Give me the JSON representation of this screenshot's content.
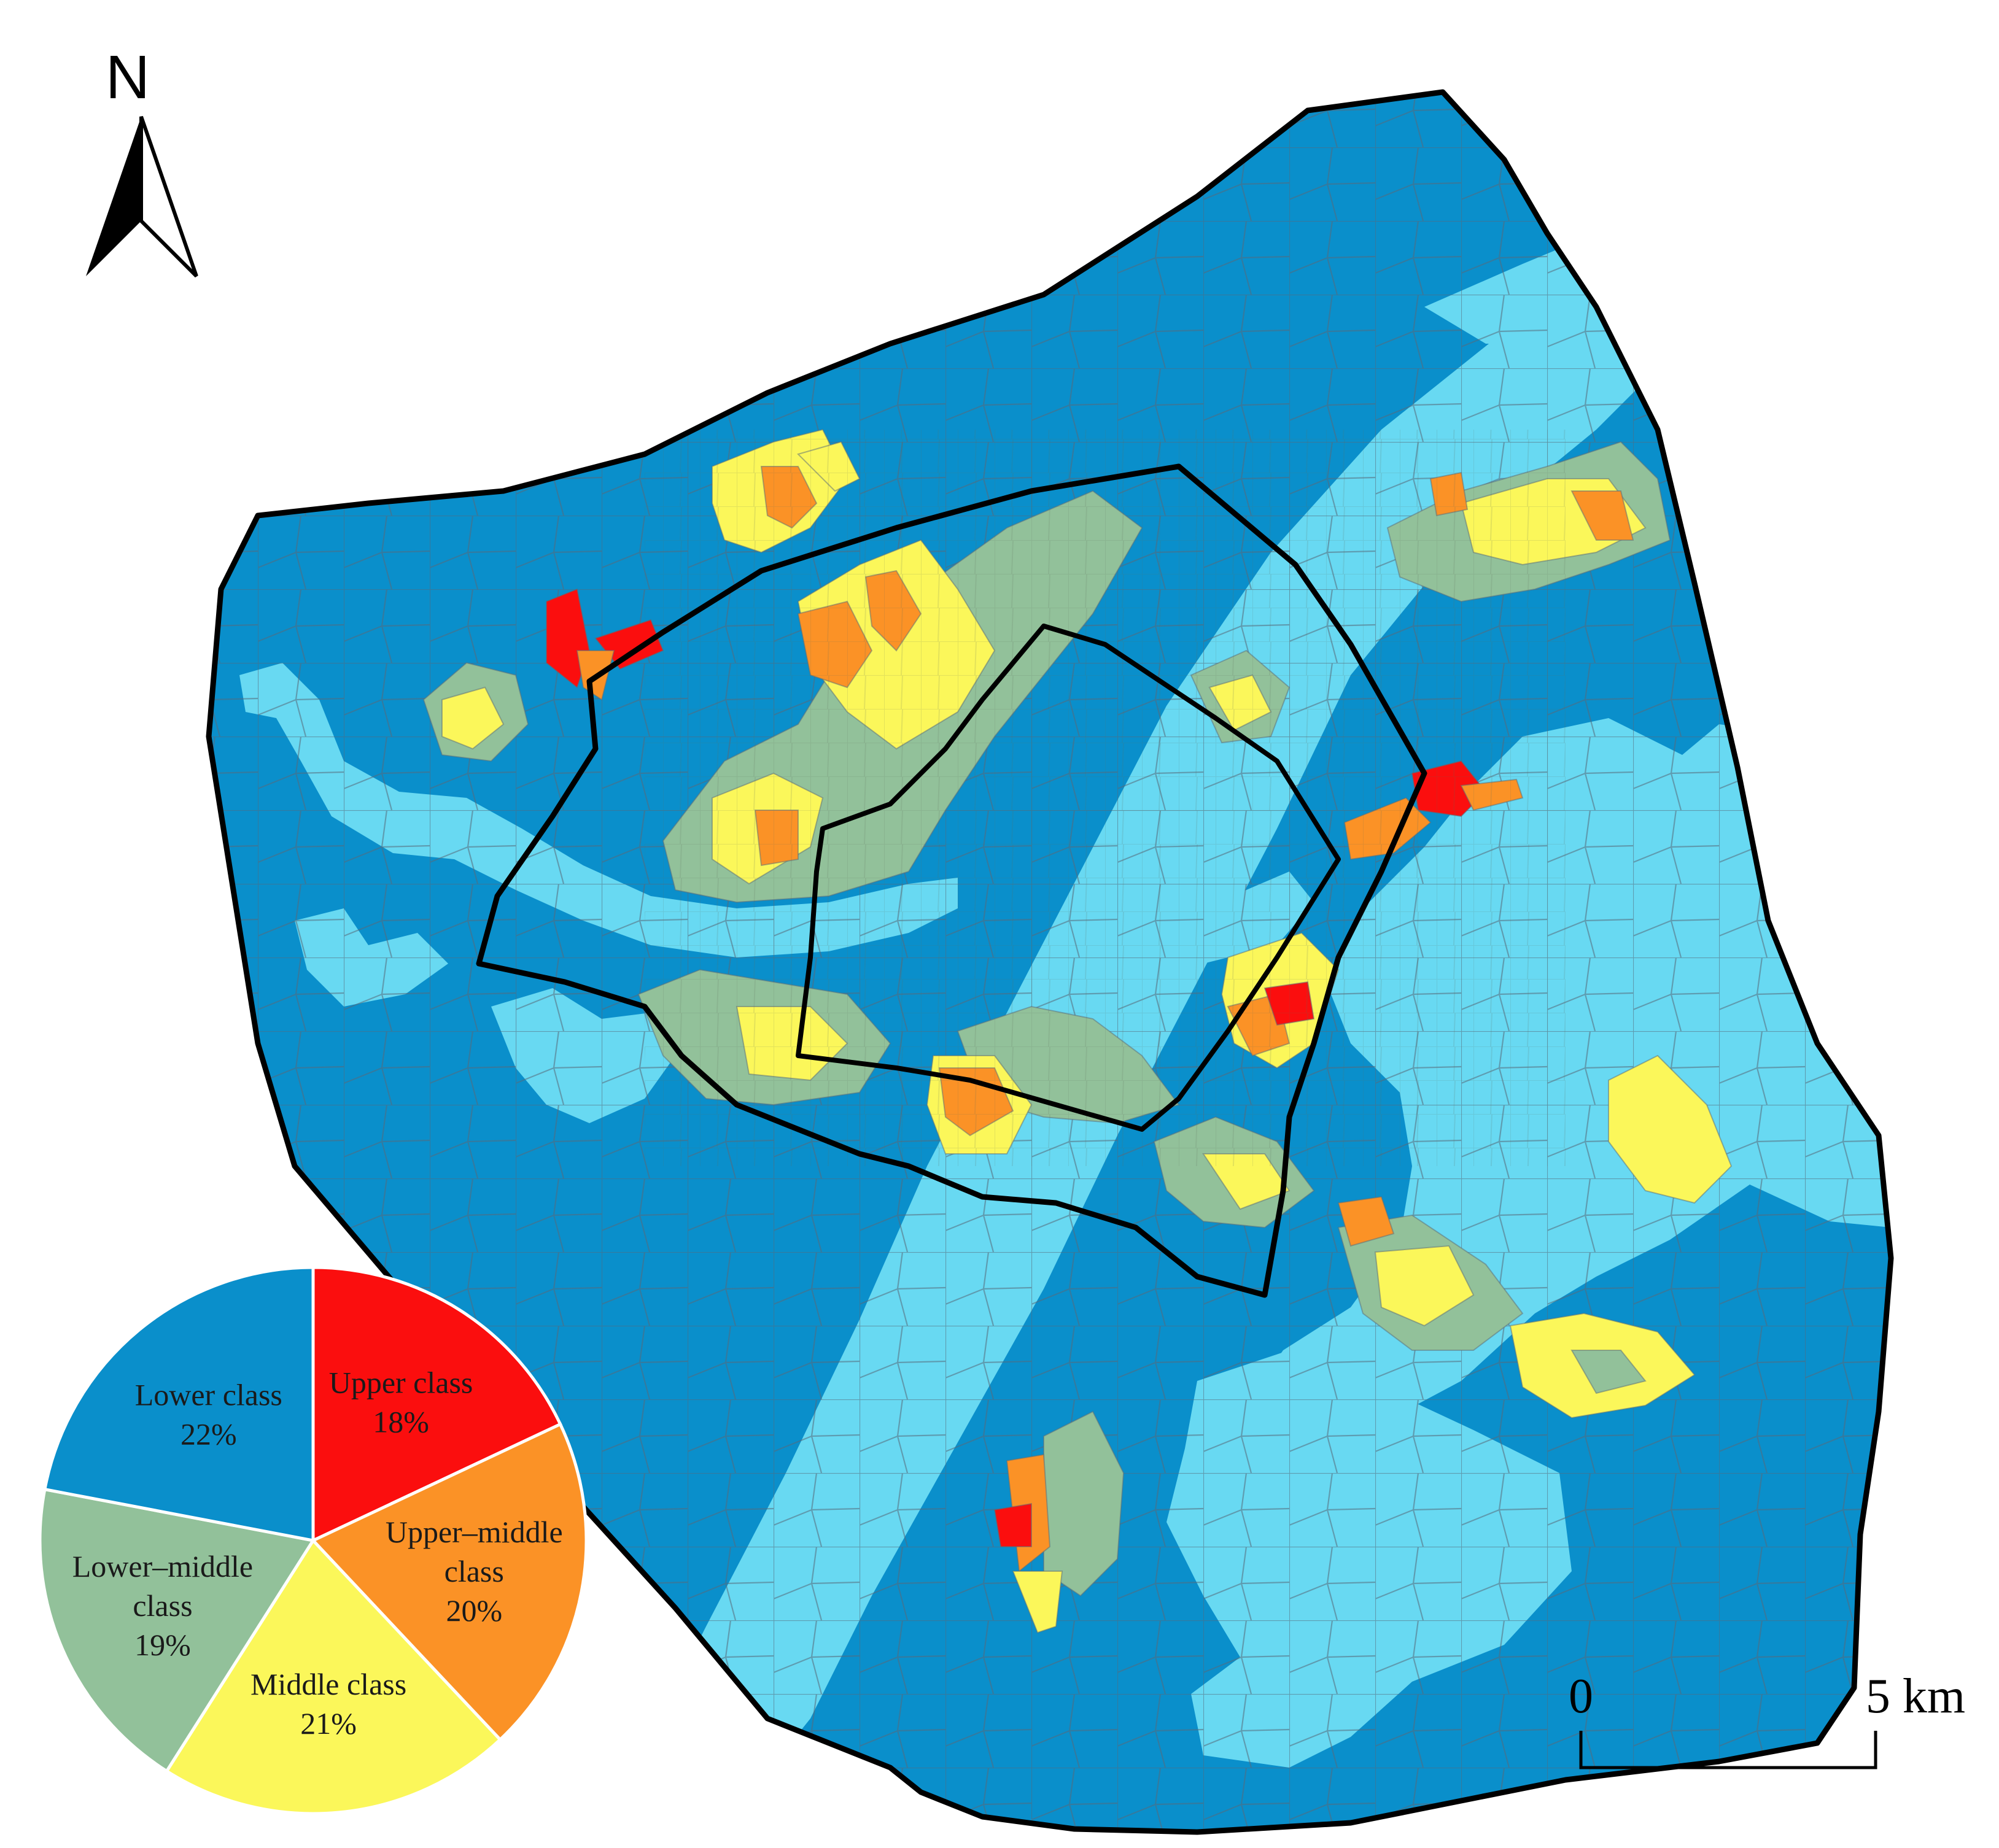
{
  "north_arrow": {
    "label": "N",
    "icon": "north-arrow-icon"
  },
  "scale_bar": {
    "start_label": "0",
    "end_label": "5 km"
  },
  "colors": {
    "lower": "#0a8fcb",
    "lower_middle": "#92c19a",
    "middle": "#fbf75a",
    "upper_middle": "#fb9226",
    "upper": "#fb0e0e",
    "water": "#68d9f2",
    "boundary": "#000000",
    "tract_lines": "#5a6b78"
  },
  "pie": {
    "slices": [
      {
        "key": "upper",
        "label_lines": [
          "Upper class",
          "18%"
        ],
        "share": 18
      },
      {
        "key": "upper_middle",
        "label_lines": [
          "Upper–middle",
          "class",
          "20%"
        ],
        "share": 20
      },
      {
        "key": "middle",
        "label_lines": [
          "Middle class",
          "21%"
        ],
        "share": 21
      },
      {
        "key": "lower_middle",
        "label_lines": [
          "Lower–middle",
          "class",
          "19%"
        ],
        "share": 19
      },
      {
        "key": "lower",
        "label_lines": [
          "Lower class",
          "22%"
        ],
        "share": 22
      }
    ]
  }
}
